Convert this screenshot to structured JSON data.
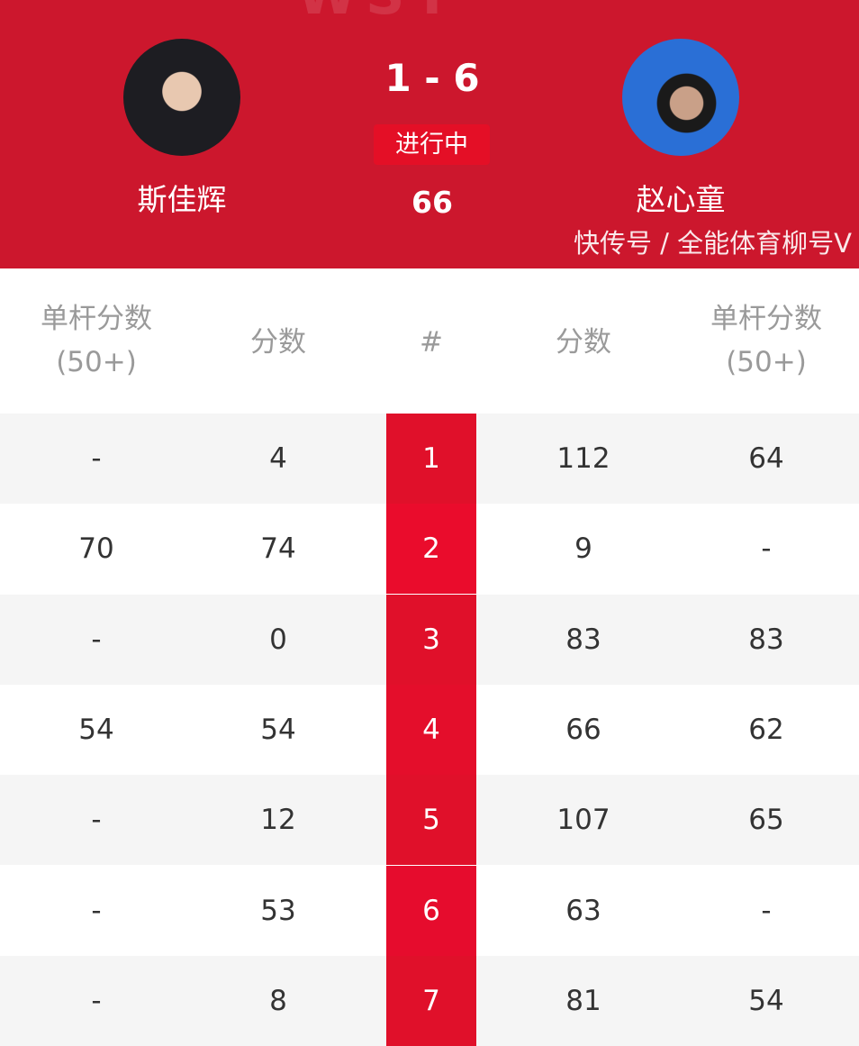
{
  "header": {
    "ghost_text": "WST",
    "player1": {
      "name": "斯佳辉"
    },
    "player2": {
      "name": "赵心童"
    },
    "score": "1 - 6",
    "status": "进行中",
    "current_frame_score": "66",
    "colors": {
      "header_bg": "#cc172d",
      "status_bg": "#e40f26"
    }
  },
  "column_lines": {
    "c0a": "单杆分数",
    "c0b": "(50+)",
    "c1": "分数",
    "c2": "#",
    "c3": "分数",
    "c4a": "单杆分数",
    "c4b": "(50+)"
  },
  "rows": [
    {
      "p1_break": "-",
      "p1_score": "4",
      "frame": "1",
      "p2_score": "112",
      "p2_break": "64"
    },
    {
      "p1_break": "70",
      "p1_score": "74",
      "frame": "2",
      "p2_score": "9",
      "p2_break": "-"
    },
    {
      "p1_break": "-",
      "p1_score": "0",
      "frame": "3",
      "p2_score": "83",
      "p2_break": "83"
    },
    {
      "p1_break": "54",
      "p1_score": "54",
      "frame": "4",
      "p2_score": "66",
      "p2_break": "62"
    },
    {
      "p1_break": "-",
      "p1_score": "12",
      "frame": "5",
      "p2_score": "107",
      "p2_break": "65"
    },
    {
      "p1_break": "-",
      "p1_score": "53",
      "frame": "6",
      "p2_score": "63",
      "p2_break": "-"
    },
    {
      "p1_break": "-",
      "p1_score": "8",
      "frame": "7",
      "p2_score": "81",
      "p2_break": "54"
    }
  ],
  "watermark": "快传号 / 全能体育柳号V"
}
